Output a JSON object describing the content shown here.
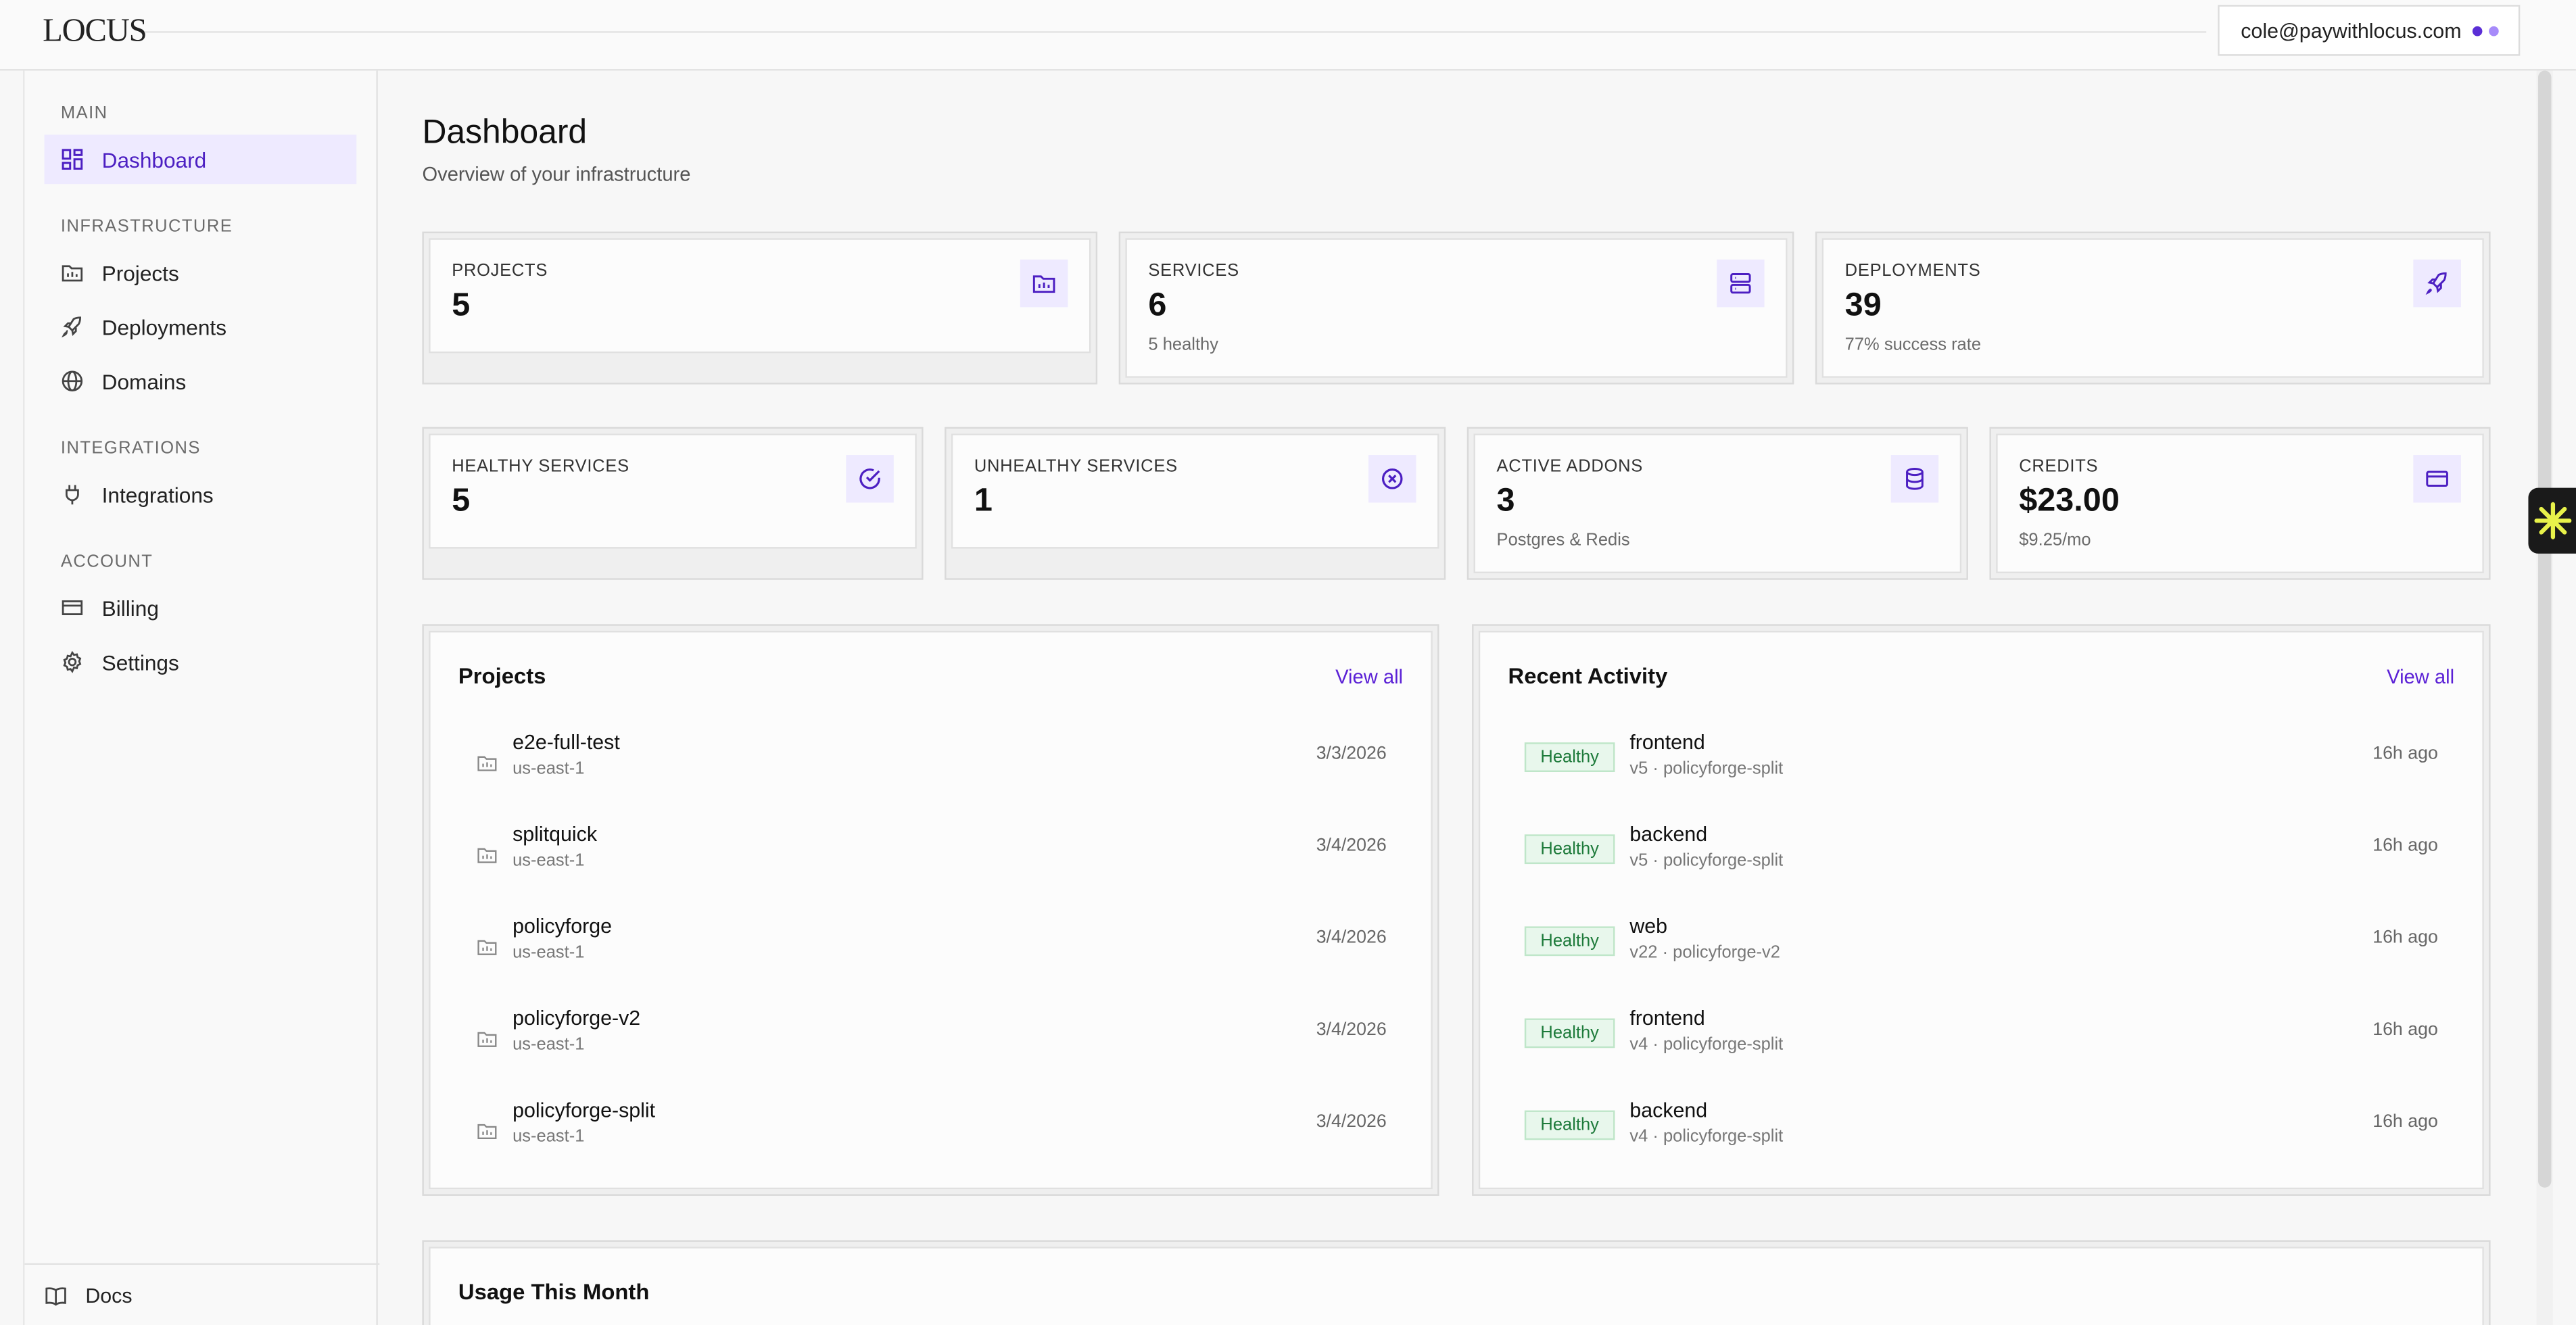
{
  "app": {
    "logo": "LOCUS",
    "user_email": "cole@paywithlocus.com"
  },
  "sidebar": {
    "sections": [
      {
        "title": "MAIN",
        "items": [
          {
            "label": "Dashboard",
            "icon": "grid-icon",
            "active": true
          }
        ]
      },
      {
        "title": "INFRASTRUCTURE",
        "items": [
          {
            "label": "Projects",
            "icon": "folder-icon"
          },
          {
            "label": "Deployments",
            "icon": "rocket-icon"
          },
          {
            "label": "Domains",
            "icon": "globe-icon"
          }
        ]
      },
      {
        "title": "INTEGRATIONS",
        "items": [
          {
            "label": "Integrations",
            "icon": "plug-icon"
          }
        ]
      },
      {
        "title": "ACCOUNT",
        "items": [
          {
            "label": "Billing",
            "icon": "card-icon"
          },
          {
            "label": "Settings",
            "icon": "gear-icon"
          }
        ]
      }
    ],
    "footer": {
      "label": "Docs",
      "icon": "book-icon"
    }
  },
  "main": {
    "title": "Dashboard",
    "subtitle": "Overview of your infrastructure",
    "stats_row1": [
      {
        "label": "PROJECTS",
        "value": "5",
        "sub": "",
        "icon": "folder-icon"
      },
      {
        "label": "SERVICES",
        "value": "6",
        "sub": "5 healthy",
        "icon": "server-icon"
      },
      {
        "label": "DEPLOYMENTS",
        "value": "39",
        "sub": "77% success rate",
        "icon": "rocket-icon"
      }
    ],
    "stats_row2": [
      {
        "label": "HEALTHY SERVICES",
        "value": "5",
        "sub": "",
        "icon": "check-circle-icon"
      },
      {
        "label": "UNHEALTHY SERVICES",
        "value": "1",
        "sub": "",
        "icon": "x-circle-icon"
      },
      {
        "label": "ACTIVE ADDONS",
        "value": "3",
        "sub": "Postgres & Redis",
        "icon": "database-icon"
      },
      {
        "label": "CREDITS",
        "value": "$23.00",
        "sub": "$9.25/mo",
        "icon": "card-icon"
      }
    ],
    "projects": {
      "title": "Projects",
      "link": "View all",
      "items": [
        {
          "name": "e2e-full-test",
          "region": "us-east-1",
          "date": "3/3/2026"
        },
        {
          "name": "splitquick",
          "region": "us-east-1",
          "date": "3/4/2026"
        },
        {
          "name": "policyforge",
          "region": "us-east-1",
          "date": "3/4/2026"
        },
        {
          "name": "policyforge-v2",
          "region": "us-east-1",
          "date": "3/4/2026"
        },
        {
          "name": "policyforge-split",
          "region": "us-east-1",
          "date": "3/4/2026"
        }
      ]
    },
    "activity": {
      "title": "Recent Activity",
      "link": "View all",
      "items": [
        {
          "status": "Healthy",
          "name": "frontend",
          "meta": "v5 · policyforge-split",
          "time": "16h ago"
        },
        {
          "status": "Healthy",
          "name": "backend",
          "meta": "v5 · policyforge-split",
          "time": "16h ago"
        },
        {
          "status": "Healthy",
          "name": "web",
          "meta": "v22 · policyforge-v2",
          "time": "16h ago"
        },
        {
          "status": "Healthy",
          "name": "frontend",
          "meta": "v4 · policyforge-split",
          "time": "16h ago"
        },
        {
          "status": "Healthy",
          "name": "backend",
          "meta": "v4 · policyforge-split",
          "time": "16h ago"
        }
      ]
    },
    "usage": {
      "title": "Usage This Month"
    }
  },
  "colors": {
    "accent": "#4c1fc2",
    "accent_bg": "#eeeaff",
    "healthy": "#1d7a3a"
  }
}
